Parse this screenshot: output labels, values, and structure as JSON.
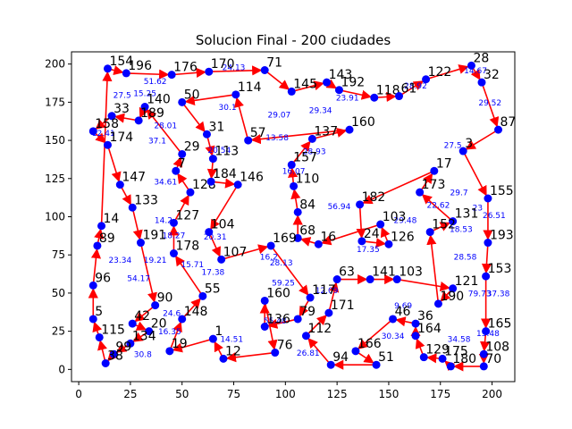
{
  "chart_data": {
    "type": "scatter",
    "title": "Solucion Final - 200 ciudades",
    "xlabel": "",
    "ylabel": "",
    "xlim": [
      -3.5,
      211
    ],
    "ylim": [
      -8,
      208
    ],
    "xticks": [
      0,
      25,
      50,
      75,
      100,
      125,
      150,
      175,
      200
    ],
    "yticks": [
      0,
      25,
      50,
      75,
      100,
      125,
      150,
      175,
      200
    ],
    "grid": false,
    "colors": {
      "route": "#ff0000",
      "city": "#0000ff",
      "edge_label": "#0000ff"
    },
    "cities": [
      {
        "id": "154",
        "x": 14,
        "y": 197
      },
      {
        "id": "196",
        "x": 23,
        "y": 194
      },
      {
        "id": "176",
        "x": 45,
        "y": 193
      },
      {
        "id": "170",
        "x": 63,
        "y": 195
      },
      {
        "id": "71",
        "x": 90,
        "y": 196
      },
      {
        "id": "28",
        "x": 190,
        "y": 199
      },
      {
        "id": "122",
        "x": 168,
        "y": 190
      },
      {
        "id": "32",
        "x": 195,
        "y": 188
      },
      {
        "id": "143",
        "x": 120,
        "y": 188
      },
      {
        "id": "192",
        "x": 126,
        "y": 183
      },
      {
        "id": "50",
        "x": 50,
        "y": 175
      },
      {
        "id": "114",
        "x": 76,
        "y": 180
      },
      {
        "id": "145",
        "x": 103,
        "y": 182
      },
      {
        "id": "140",
        "x": 32,
        "y": 172
      },
      {
        "id": "33",
        "x": 16,
        "y": 166
      },
      {
        "id": "189",
        "x": 29,
        "y": 163
      },
      {
        "id": "158",
        "x": 7,
        "y": 156
      },
      {
        "id": "174",
        "x": 14,
        "y": 147
      },
      {
        "id": "87",
        "x": 203,
        "y": 157
      },
      {
        "id": "31",
        "x": 62,
        "y": 154
      },
      {
        "id": "57",
        "x": 82,
        "y": 150
      },
      {
        "id": "137",
        "x": 113,
        "y": 151
      },
      {
        "id": "160",
        "x": 131,
        "y": 157
      },
      {
        "id": "118",
        "x": 143,
        "y": 178
      },
      {
        "id": "61",
        "x": 155,
        "y": 179
      },
      {
        "id": "3",
        "x": 186,
        "y": 143
      },
      {
        "id": "29",
        "x": 50,
        "y": 141
      },
      {
        "id": "7",
        "x": 47,
        "y": 130
      },
      {
        "id": "113",
        "x": 65,
        "y": 138
      },
      {
        "id": "157",
        "x": 103,
        "y": 134
      },
      {
        "id": "17",
        "x": 172,
        "y": 130
      },
      {
        "id": "147",
        "x": 20,
        "y": 121
      },
      {
        "id": "128",
        "x": 54,
        "y": 116
      },
      {
        "id": "184",
        "x": 64,
        "y": 123
      },
      {
        "id": "146",
        "x": 77,
        "y": 121
      },
      {
        "id": "110",
        "x": 104,
        "y": 120
      },
      {
        "id": "173",
        "x": 165,
        "y": 116
      },
      {
        "id": "155",
        "x": 198,
        "y": 112
      },
      {
        "id": "133",
        "x": 26,
        "y": 106
      },
      {
        "id": "127",
        "x": 46,
        "y": 96
      },
      {
        "id": "84",
        "x": 106,
        "y": 103
      },
      {
        "id": "182",
        "x": 136,
        "y": 108
      },
      {
        "id": "131",
        "x": 181,
        "y": 97
      },
      {
        "id": "14",
        "x": 11,
        "y": 94
      },
      {
        "id": "89",
        "x": 9,
        "y": 81
      },
      {
        "id": "191",
        "x": 30,
        "y": 83
      },
      {
        "id": "104",
        "x": 63,
        "y": 90
      },
      {
        "id": "68",
        "x": 106,
        "y": 86
      },
      {
        "id": "103",
        "x": 146,
        "y": 95
      },
      {
        "id": "152",
        "x": 170,
        "y": 90
      },
      {
        "id": "193",
        "x": 198,
        "y": 83
      },
      {
        "id": "178",
        "x": 46,
        "y": 76
      },
      {
        "id": "107",
        "x": 69,
        "y": 72
      },
      {
        "id": "169",
        "x": 93,
        "y": 81
      },
      {
        "id": "16",
        "x": 116,
        "y": 82
      },
      {
        "id": "24",
        "x": 137,
        "y": 84
      },
      {
        "id": "126",
        "x": 150,
        "y": 82
      },
      {
        "id": "153",
        "x": 197,
        "y": 61
      },
      {
        "id": "63",
        "x": 125,
        "y": 59
      },
      {
        "id": "141",
        "x": 141,
        "y": 59
      },
      {
        "id": "103b",
        "x": 154,
        "y": 59
      },
      {
        "id": "96",
        "x": 7,
        "y": 55
      },
      {
        "id": "121",
        "x": 181,
        "y": 53
      },
      {
        "id": "160b",
        "x": 90,
        "y": 45
      },
      {
        "id": "117",
        "x": 112,
        "y": 47
      },
      {
        "id": "190",
        "x": 174,
        "y": 43
      },
      {
        "id": "90",
        "x": 37,
        "y": 42
      },
      {
        "id": "55",
        "x": 60,
        "y": 48
      },
      {
        "id": "171",
        "x": 121,
        "y": 37
      },
      {
        "id": "148",
        "x": 50,
        "y": 33
      },
      {
        "id": "79",
        "x": 106,
        "y": 33
      },
      {
        "id": "136",
        "x": 90,
        "y": 28
      },
      {
        "id": "46",
        "x": 152,
        "y": 33
      },
      {
        "id": "36",
        "x": 163,
        "y": 30
      },
      {
        "id": "5",
        "x": 7,
        "y": 33
      },
      {
        "id": "42",
        "x": 26,
        "y": 30
      },
      {
        "id": "20",
        "x": 34,
        "y": 25
      },
      {
        "id": "164",
        "x": 163,
        "y": 22
      },
      {
        "id": "165",
        "x": 197,
        "y": 25
      },
      {
        "id": "115",
        "x": 10,
        "y": 21
      },
      {
        "id": "134",
        "x": 25,
        "y": 17
      },
      {
        "id": "1",
        "x": 65,
        "y": 20
      },
      {
        "id": "112",
        "x": 110,
        "y": 22
      },
      {
        "id": "99",
        "x": 17,
        "y": 10
      },
      {
        "id": "19",
        "x": 44,
        "y": 12
      },
      {
        "id": "76",
        "x": 95,
        "y": 11
      },
      {
        "id": "166",
        "x": 134,
        "y": 12
      },
      {
        "id": "108",
        "x": 196,
        "y": 10
      },
      {
        "id": "129",
        "x": 167,
        "y": 8
      },
      {
        "id": "175",
        "x": 176,
        "y": 7
      },
      {
        "id": "38",
        "x": 13,
        "y": 4
      },
      {
        "id": "12",
        "x": 70,
        "y": 7
      },
      {
        "id": "94",
        "x": 122,
        "y": 3
      },
      {
        "id": "51",
        "x": 144,
        "y": 3
      },
      {
        "id": "180",
        "x": 180,
        "y": 2
      },
      {
        "id": "70",
        "x": 196,
        "y": 2
      }
    ],
    "route_order": [
      "154",
      "196",
      "176",
      "170",
      "71",
      "145",
      "143",
      "192",
      "118",
      "61",
      "122",
      "28",
      "32",
      "87",
      "3",
      "155",
      "193",
      "153",
      "165",
      "108",
      "70",
      "180",
      "175",
      "129",
      "164",
      "36",
      "46",
      "166",
      "51",
      "94",
      "112",
      "171",
      "63",
      "141",
      "103b",
      "121",
      "190",
      "152",
      "131",
      "173",
      "17",
      "182",
      "24",
      "126",
      "103",
      "16",
      "68",
      "84",
      "110",
      "157",
      "137",
      "160",
      "57",
      "114",
      "50",
      "31",
      "113",
      "184",
      "146",
      "104",
      "107",
      "169",
      "117",
      "79",
      "136",
      "160b",
      "76",
      "12",
      "1",
      "19",
      "148",
      "55",
      "178",
      "127",
      "128",
      "7",
      "29",
      "140",
      "189",
      "33",
      "158",
      "174",
      "147",
      "133",
      "191",
      "90",
      "42",
      "20",
      "134",
      "99",
      "38",
      "115",
      "5",
      "96",
      "89",
      "14",
      "154"
    ],
    "edge_labels": [
      {
        "text": "51.62",
        "x": 37,
        "y": 187
      },
      {
        "text": "27.5",
        "x": 21,
        "y": 178
      },
      {
        "text": "15.25",
        "x": 32,
        "y": 179
      },
      {
        "text": "24.13",
        "x": 75,
        "y": 196
      },
      {
        "text": "30.1",
        "x": 72,
        "y": 170
      },
      {
        "text": "28.01",
        "x": 42,
        "y": 158
      },
      {
        "text": "37.1",
        "x": 38,
        "y": 148
      },
      {
        "text": "34.61",
        "x": 42,
        "y": 121
      },
      {
        "text": "29.07",
        "x": 97,
        "y": 165
      },
      {
        "text": "29.34",
        "x": 117,
        "y": 168
      },
      {
        "text": "23.91",
        "x": 130,
        "y": 176
      },
      {
        "text": "28.92",
        "x": 163,
        "y": 184
      },
      {
        "text": "14.67",
        "x": 192,
        "y": 194
      },
      {
        "text": "29.52",
        "x": 199,
        "y": 173
      },
      {
        "text": "27.5",
        "x": 181,
        "y": 145
      },
      {
        "text": "29.7",
        "x": 184,
        "y": 114
      },
      {
        "text": "23",
        "x": 193,
        "y": 104
      },
      {
        "text": "26.51",
        "x": 201,
        "y": 99
      },
      {
        "text": "22.62",
        "x": 174,
        "y": 106
      },
      {
        "text": "18.53",
        "x": 185,
        "y": 90
      },
      {
        "text": "28.58",
        "x": 187,
        "y": 72
      },
      {
        "text": "79.73",
        "x": 194,
        "y": 48
      },
      {
        "text": "37.38",
        "x": 203,
        "y": 48
      },
      {
        "text": "15.48",
        "x": 198,
        "y": 22
      },
      {
        "text": "34.58",
        "x": 184,
        "y": 18
      },
      {
        "text": "30.34",
        "x": 152,
        "y": 20
      },
      {
        "text": "9.69",
        "x": 157,
        "y": 40
      },
      {
        "text": "29.48",
        "x": 158,
        "y": 96
      },
      {
        "text": "17.35",
        "x": 140,
        "y": 77
      },
      {
        "text": "56.94",
        "x": 126,
        "y": 105
      },
      {
        "text": "16.07",
        "x": 104,
        "y": 128
      },
      {
        "text": "28.93",
        "x": 114,
        "y": 141
      },
      {
        "text": "13.58",
        "x": 96,
        "y": 150
      },
      {
        "text": "20.54",
        "x": 68,
        "y": 142
      },
      {
        "text": "20.31",
        "x": 66,
        "y": 85
      },
      {
        "text": "28.13",
        "x": 98,
        "y": 68
      },
      {
        "text": "16.2",
        "x": 92,
        "y": 72
      },
      {
        "text": "59.25",
        "x": 99,
        "y": 55
      },
      {
        "text": "12.09",
        "x": 120,
        "y": 50
      },
      {
        "text": "55.48",
        "x": 95,
        "y": 30
      },
      {
        "text": "26.81",
        "x": 111,
        "y": 9
      },
      {
        "text": "14.51",
        "x": 74,
        "y": 18
      },
      {
        "text": "30.8",
        "x": 31,
        "y": 8
      },
      {
        "text": "16.35",
        "x": 44,
        "y": 23
      },
      {
        "text": "24.6",
        "x": 45,
        "y": 35
      },
      {
        "text": "54.17",
        "x": 29,
        "y": 58
      },
      {
        "text": "23.34",
        "x": 20,
        "y": 70
      },
      {
        "text": "19.21",
        "x": 37,
        "y": 70
      },
      {
        "text": "14.2",
        "x": 41,
        "y": 96
      },
      {
        "text": "18.27",
        "x": 46,
        "y": 86
      },
      {
        "text": "15.71",
        "x": 55,
        "y": 67
      },
      {
        "text": "17.38",
        "x": 65,
        "y": 62
      },
      {
        "text": "12.41",
        "x": 12,
        "y": 153
      }
    ]
  }
}
